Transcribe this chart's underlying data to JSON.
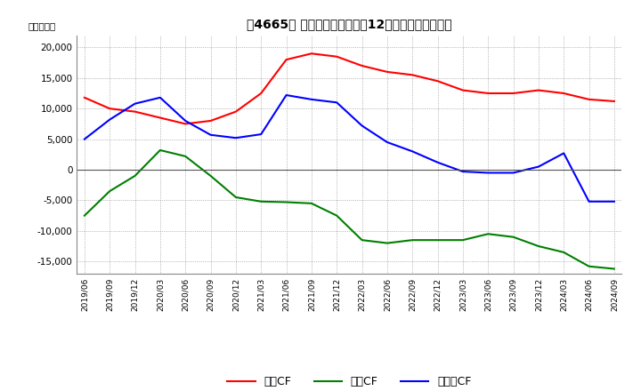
{
  "title": "　4665、 キャッシュフローの12か月移動合計の推移",
  "ylabel": "（百万円）",
  "ylim": [
    -17000,
    22000
  ],
  "yticks": [
    -15000,
    -10000,
    -5000,
    0,
    5000,
    10000,
    15000,
    20000
  ],
  "background_color": "#ffffff",
  "grid_color": "#aaaaaa",
  "legend_labels": [
    "営業CF",
    "投資CF",
    "フリーCF"
  ],
  "legend_colors": [
    "#ff0000",
    "#008000",
    "#0000ff"
  ],
  "dates": [
    "2019/06",
    "2019/09",
    "2019/12",
    "2020/03",
    "2020/06",
    "2020/09",
    "2020/12",
    "2021/03",
    "2021/06",
    "2021/09",
    "2021/12",
    "2022/03",
    "2022/06",
    "2022/09",
    "2022/12",
    "2023/03",
    "2023/06",
    "2023/09",
    "2023/12",
    "2024/03",
    "2024/06",
    "2024/09"
  ],
  "operating_cf": [
    11800,
    10000,
    9500,
    8500,
    7500,
    8000,
    9500,
    12500,
    18000,
    19000,
    18500,
    17000,
    16000,
    15500,
    14500,
    13000,
    12500,
    12500,
    13000,
    12500,
    11500,
    11200
  ],
  "investing_cf": [
    -7500,
    -3500,
    -1000,
    3200,
    2200,
    -1000,
    -4500,
    -5200,
    -5300,
    -5500,
    -7500,
    -11500,
    -12000,
    -11500,
    -11500,
    -11500,
    -10500,
    -11000,
    -12500,
    -13500,
    -15800,
    -16200
  ],
  "free_cf": [
    5000,
    8200,
    10800,
    11800,
    8000,
    5700,
    5200,
    5800,
    12200,
    11500,
    11000,
    7200,
    4500,
    3000,
    1200,
    -300,
    -500,
    -500,
    500,
    2700,
    -5200,
    -5200
  ]
}
